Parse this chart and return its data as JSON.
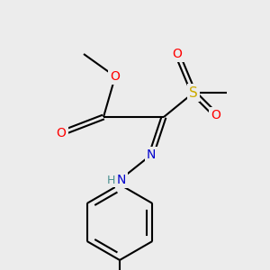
{
  "bg_color": "#ececec",
  "bond_color": "#000000",
  "atom_colors": {
    "O": "#ff0000",
    "N": "#0000cd",
    "S": "#ccaa00",
    "H": "#4a9090",
    "C": "#000000"
  },
  "font_size": 10,
  "fig_size": [
    3.0,
    3.0
  ],
  "dpi": 100,
  "lw": 1.5
}
